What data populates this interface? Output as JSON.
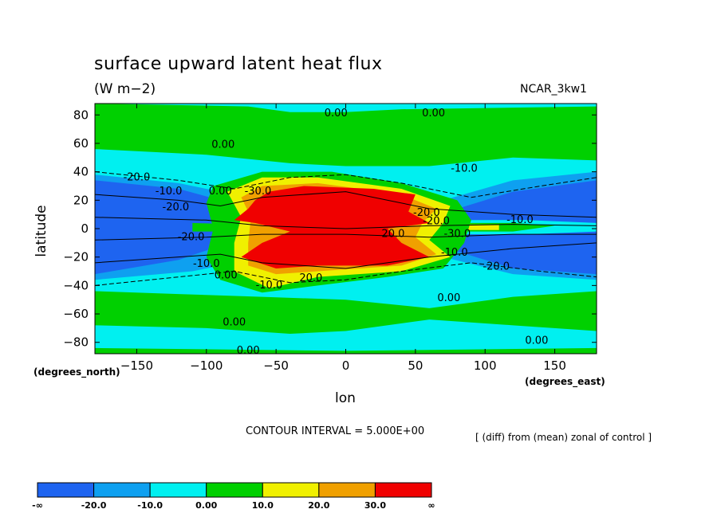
{
  "chart_data": {
    "type": "contour",
    "title": "surface upward latent heat flux",
    "units": "(W m−2)",
    "case_label": "NCAR_3kw1",
    "xlabel": "lon",
    "ylabel": "latitude",
    "x_units": "(degrees_east)",
    "y_units": "(degrees_north)",
    "xlim": [
      -180,
      180
    ],
    "ylim": [
      -88,
      88
    ],
    "x_ticks": [
      -150,
      -100,
      -50,
      0,
      50,
      100,
      150
    ],
    "y_ticks": [
      80,
      60,
      40,
      20,
      0,
      -20,
      -40,
      -60,
      -80
    ],
    "contour_interval": "CONTOUR INTERVAL = 5.000E+00",
    "note": "[ (diff) from (mean) zonal of control ]",
    "colorbar": {
      "levels": [
        "-∞",
        "-20.0",
        "-10.0",
        "0.00",
        "10.0",
        "20.0",
        "30.0",
        "∞"
      ],
      "colors": [
        "#1e64f0",
        "#0ea0f0",
        "#00f0f0",
        "#00d000",
        "#f0f000",
        "#f0a000",
        "#f00000"
      ]
    },
    "contour_labels": [
      {
        "text": "0.00",
        "lon": -7,
        "lat": 79
      },
      {
        "text": "0.00",
        "lon": 63,
        "lat": 79
      },
      {
        "text": "0.00",
        "lon": -88,
        "lat": 57
      },
      {
        "text": "-10.0",
        "lon": 85,
        "lat": 40
      },
      {
        "text": "-20.0",
        "lon": -150,
        "lat": 34
      },
      {
        "text": "-10.0",
        "lon": -127,
        "lat": 24
      },
      {
        "text": "0.00",
        "lon": -90,
        "lat": 24
      },
      {
        "text": "-30.0",
        "lon": -63,
        "lat": 24
      },
      {
        "text": "-20.0",
        "lon": -122,
        "lat": 13
      },
      {
        "text": "-20.0",
        "lon": 58,
        "lat": 9
      },
      {
        "text": "-20.0",
        "lon": 65,
        "lat": 3
      },
      {
        "text": "-10.0",
        "lon": 125,
        "lat": 4
      },
      {
        "text": "-20.0",
        "lon": -111,
        "lat": -8
      },
      {
        "text": "20.0",
        "lon": 34,
        "lat": -6
      },
      {
        "text": "-30.0",
        "lon": 80,
        "lat": -6
      },
      {
        "text": "-10.0",
        "lon": 78,
        "lat": -19
      },
      {
        "text": "-10.0",
        "lon": -100,
        "lat": -27
      },
      {
        "text": "0.00",
        "lon": -86,
        "lat": -35
      },
      {
        "text": "20.0",
        "lon": -25,
        "lat": -37
      },
      {
        "text": "-20.0",
        "lon": 108,
        "lat": -29
      },
      {
        "text": "-10.0",
        "lon": -55,
        "lat": -42
      },
      {
        "text": "0.00",
        "lon": 74,
        "lat": -51
      },
      {
        "text": "0.00",
        "lon": -80,
        "lat": -68
      },
      {
        "text": "0.00",
        "lon": 137,
        "lat": -81
      },
      {
        "text": "0.00",
        "lon": -70,
        "lat": -88
      }
    ]
  }
}
